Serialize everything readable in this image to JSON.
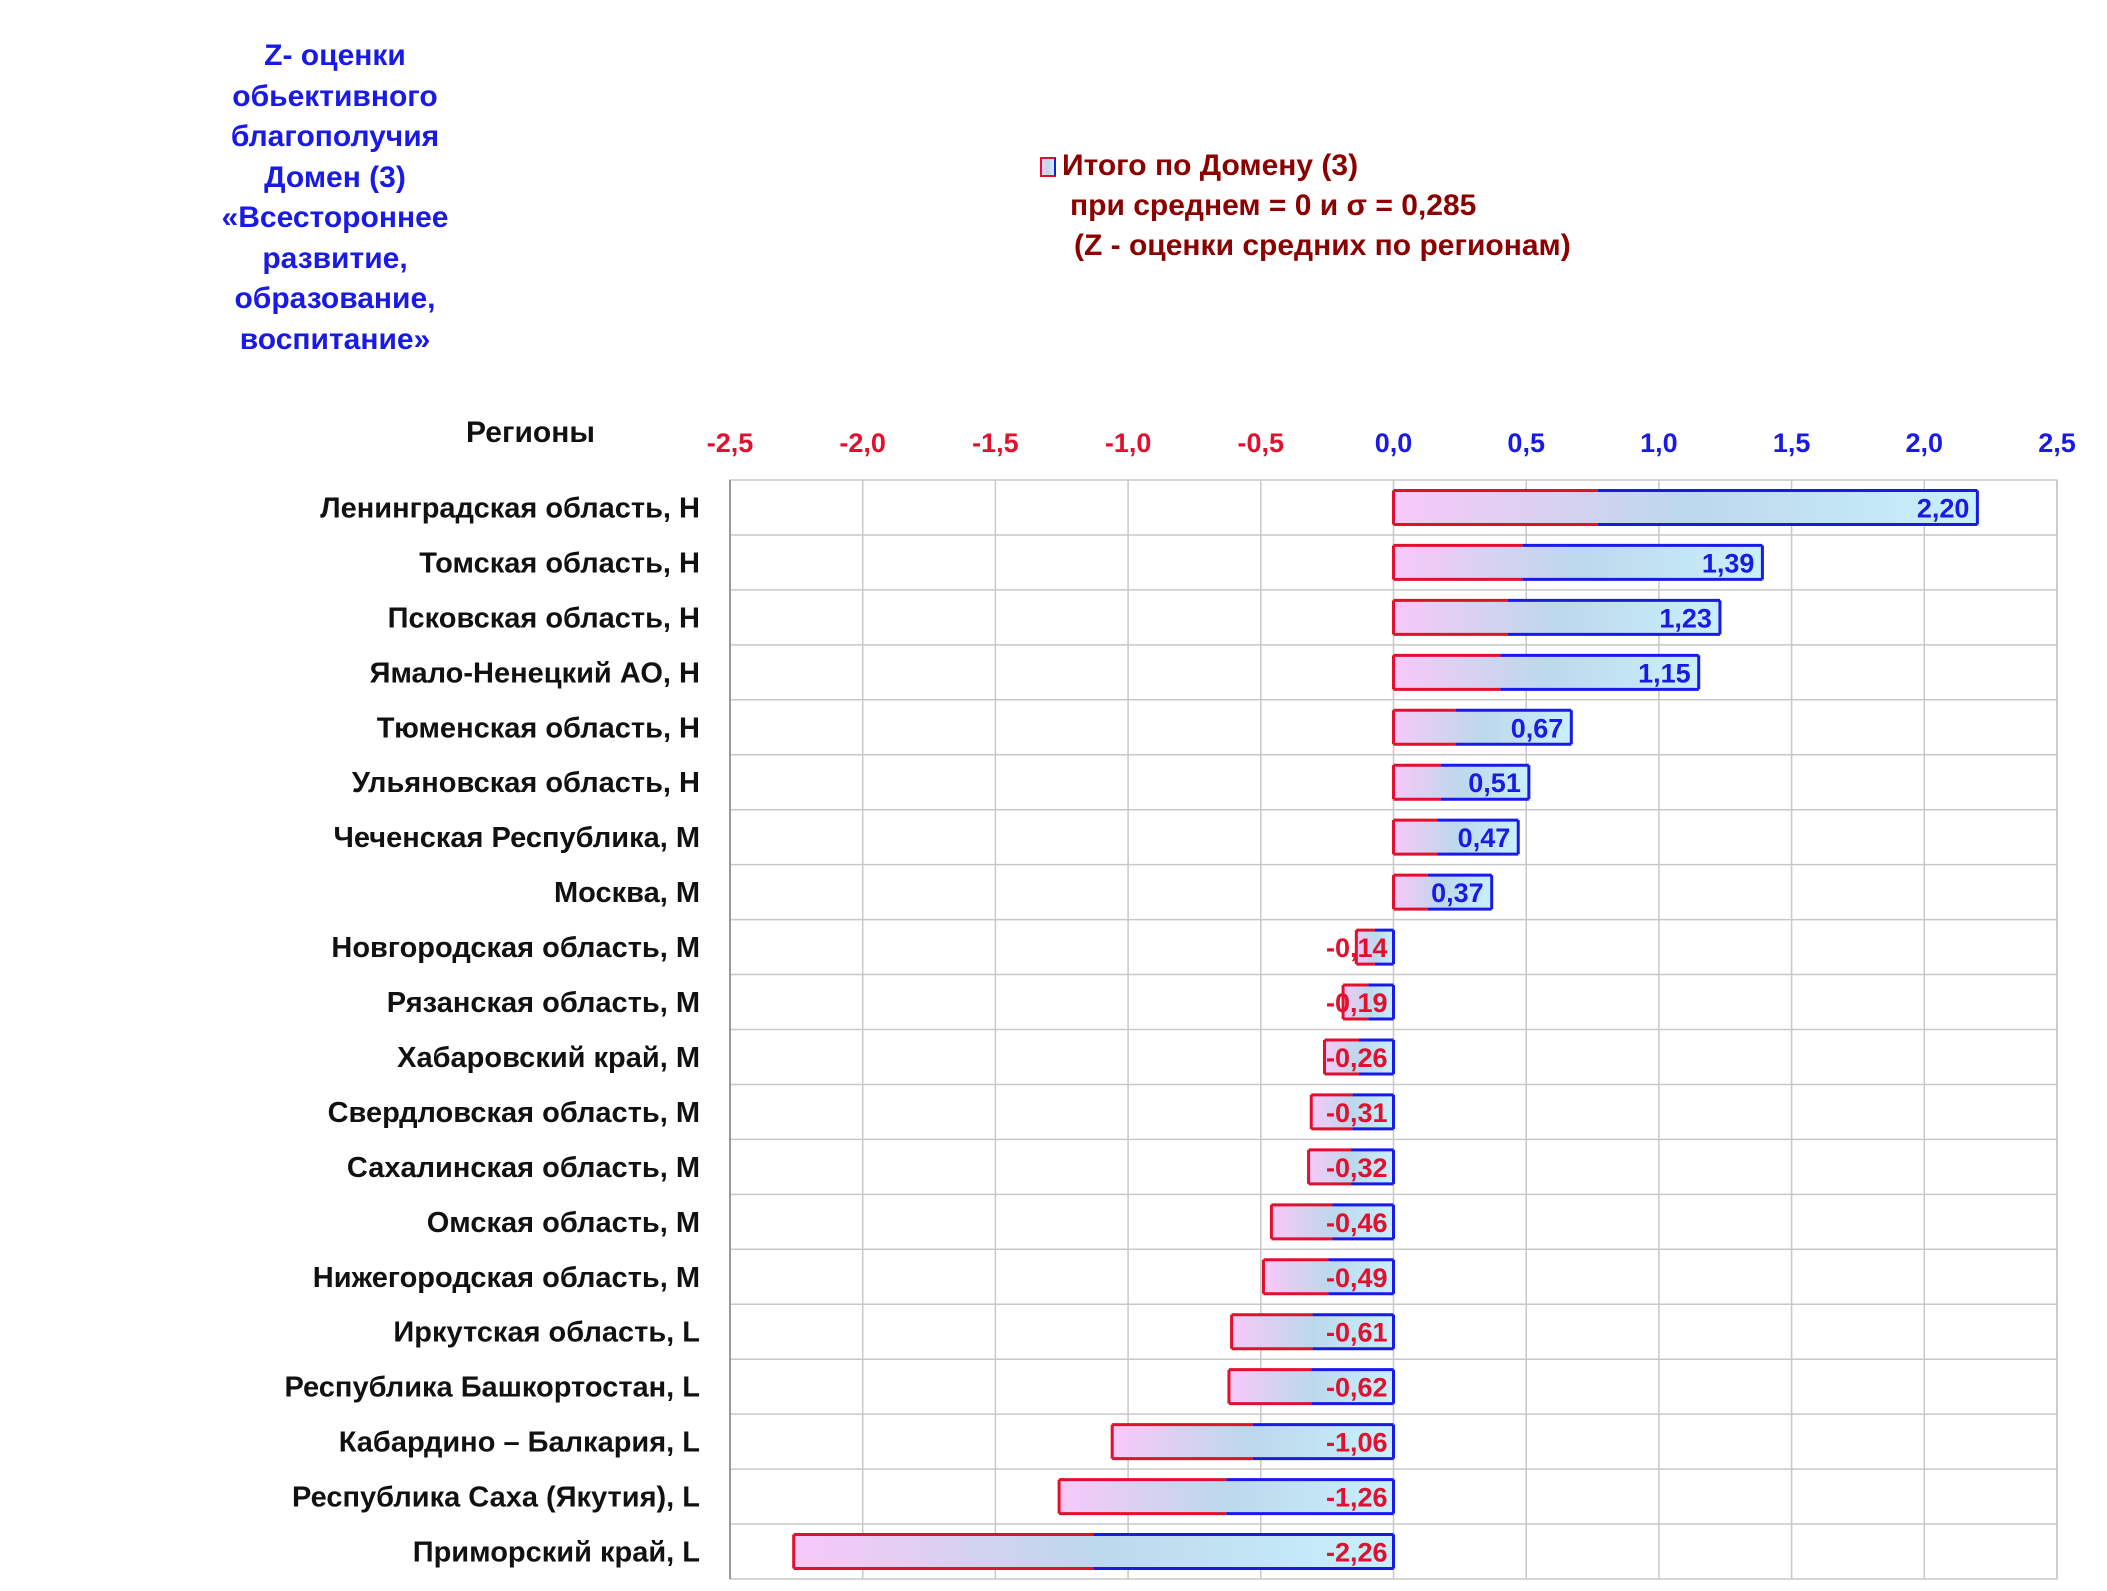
{
  "side_title": {
    "lines": [
      "Z- оценки",
      "обьективного",
      "благополучия",
      "Домен (3)",
      "«Всестороннее",
      "развитие,",
      "образование,",
      "воспитание»"
    ]
  },
  "legend": {
    "series_label": "Итого по Домену (3)",
    "line2": "при среднем = 0  и σ = 0,285",
    "line3": "(Z - оценки средних по регионам)"
  },
  "chart_data": {
    "type": "bar",
    "orientation": "horizontal",
    "ylabel": "Регионы",
    "xlim": [
      -2.5,
      2.5
    ],
    "x_ticks": [
      -2.5,
      -2.0,
      -1.5,
      -1.0,
      -0.5,
      0.0,
      0.5,
      1.0,
      1.5,
      2.0,
      2.5
    ],
    "x_tick_labels": [
      "-2,5",
      "-2,0",
      "-1,5",
      "-1,0",
      "-0,5",
      "0,0",
      "0,5",
      "1,0",
      "1,5",
      "2,0",
      "2,5"
    ],
    "grid": true,
    "legend_position": "top",
    "colors": {
      "positive": "#1a1ae6",
      "negative": "#e0102e",
      "legend_text": "#8b0000"
    },
    "categories": [
      "Ленинградская область,  H",
      "Томская область,  H",
      "Псковская область,  H",
      "Ямало-Ненецкий АО,  H",
      "Тюменская область,  H",
      "Ульяновская область,  H",
      "Чеченская Республика,  M",
      "Москва,  M",
      "Новгородская область,  M",
      "Рязанская область,  M",
      "Хабаровский край,  M",
      "Свердловская область,  M",
      "Сахалинская область,  M",
      "Омская область,  M",
      "Нижегородская область,  M",
      "Иркутская область,  L",
      "Республика Башкортостан,  L",
      "Кабардино – Балкария,  L",
      "Республика Саха (Якутия),  L",
      "Приморский край,  L"
    ],
    "series": [
      {
        "name": "Итого по Домену (3)",
        "values": [
          2.2,
          1.39,
          1.23,
          1.15,
          0.67,
          0.51,
          0.47,
          0.37,
          -0.14,
          -0.19,
          -0.26,
          -0.31,
          -0.32,
          -0.46,
          -0.49,
          -0.61,
          -0.62,
          -1.06,
          -1.26,
          -2.26
        ],
        "value_labels": [
          "2,20",
          "1,39",
          "1,23",
          "1,15",
          "0,67",
          "0,51",
          "0,47",
          "0,37",
          "-0,14",
          "-0,19",
          "-0,26",
          "-0,31",
          "-0,32",
          "-0,46",
          "-0,49",
          "-0,61",
          "-0,62",
          "-1,06",
          "-1,26",
          "-2,26"
        ]
      }
    ]
  }
}
